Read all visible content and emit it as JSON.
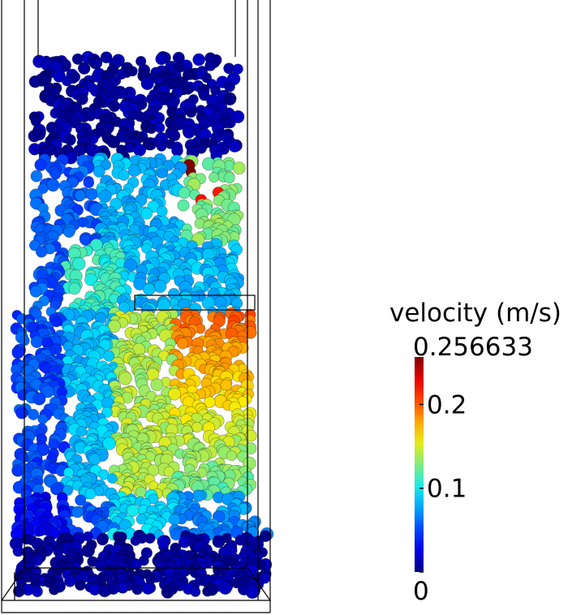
{
  "colorbar": {
    "title": "velocity (m/s)",
    "range": [
      0,
      0.256633
    ],
    "ticks": [
      0,
      0.1,
      0.2
    ]
  }
}
